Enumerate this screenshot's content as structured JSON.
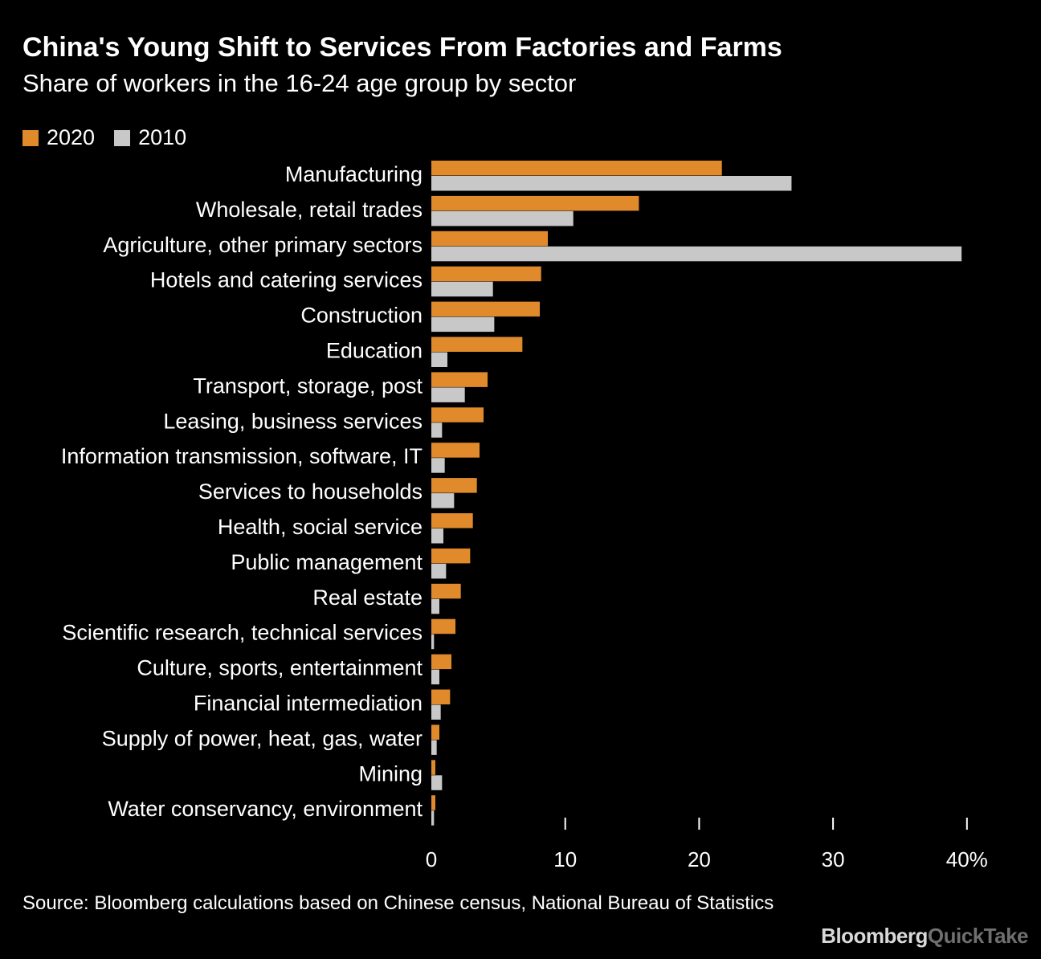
{
  "title": "China's Young Shift to Services From Factories and Farms",
  "subtitle": "Share of workers in the 16-24 age group by sector",
  "source": "Source: Bloomberg calculations based on Chinese census, National Bureau of Statistics",
  "brand": {
    "part1": "Bloomberg",
    "part2": "QuickTake"
  },
  "colors": {
    "s2020": "#e08a2c",
    "s2010": "#c8c8c8",
    "background": "#000000",
    "text": "#ffffff"
  },
  "legend": [
    {
      "label": "2020",
      "color": "#e08a2c"
    },
    {
      "label": "2010",
      "color": "#c8c8c8"
    }
  ],
  "chart_data": {
    "type": "bar",
    "orientation": "horizontal",
    "categories": [
      "Manufacturing",
      "Wholesale, retail trades",
      "Agriculture, other primary sectors",
      "Hotels and catering services",
      "Construction",
      "Education",
      "Transport, storage, post",
      "Leasing, business services",
      "Information transmission, software, IT",
      "Services to households",
      "Health, social service",
      "Public management",
      "Real estate",
      "Scientific research, technical services",
      "Culture, sports, entertainment",
      "Financial intermediation",
      "Supply of power, heat, gas, water",
      "Mining",
      "Water conservancy, environment"
    ],
    "series": [
      {
        "name": "2020",
        "values": [
          21.7,
          15.5,
          8.7,
          8.2,
          8.1,
          6.8,
          4.2,
          3.9,
          3.6,
          3.4,
          3.1,
          2.9,
          2.2,
          1.8,
          1.5,
          1.4,
          0.6,
          0.3,
          0.3
        ]
      },
      {
        "name": "2010",
        "values": [
          26.9,
          10.6,
          39.6,
          4.6,
          4.7,
          1.2,
          2.5,
          0.8,
          1.0,
          1.7,
          0.9,
          1.1,
          0.6,
          0.2,
          0.6,
          0.7,
          0.4,
          0.8,
          0.2
        ]
      }
    ],
    "xlim": [
      0,
      40
    ],
    "xticks": [
      0,
      10,
      20,
      30,
      40
    ],
    "xtick_labels": [
      "0",
      "10",
      "20",
      "30",
      "40%"
    ],
    "grid": false,
    "legend_position": "top-left"
  }
}
